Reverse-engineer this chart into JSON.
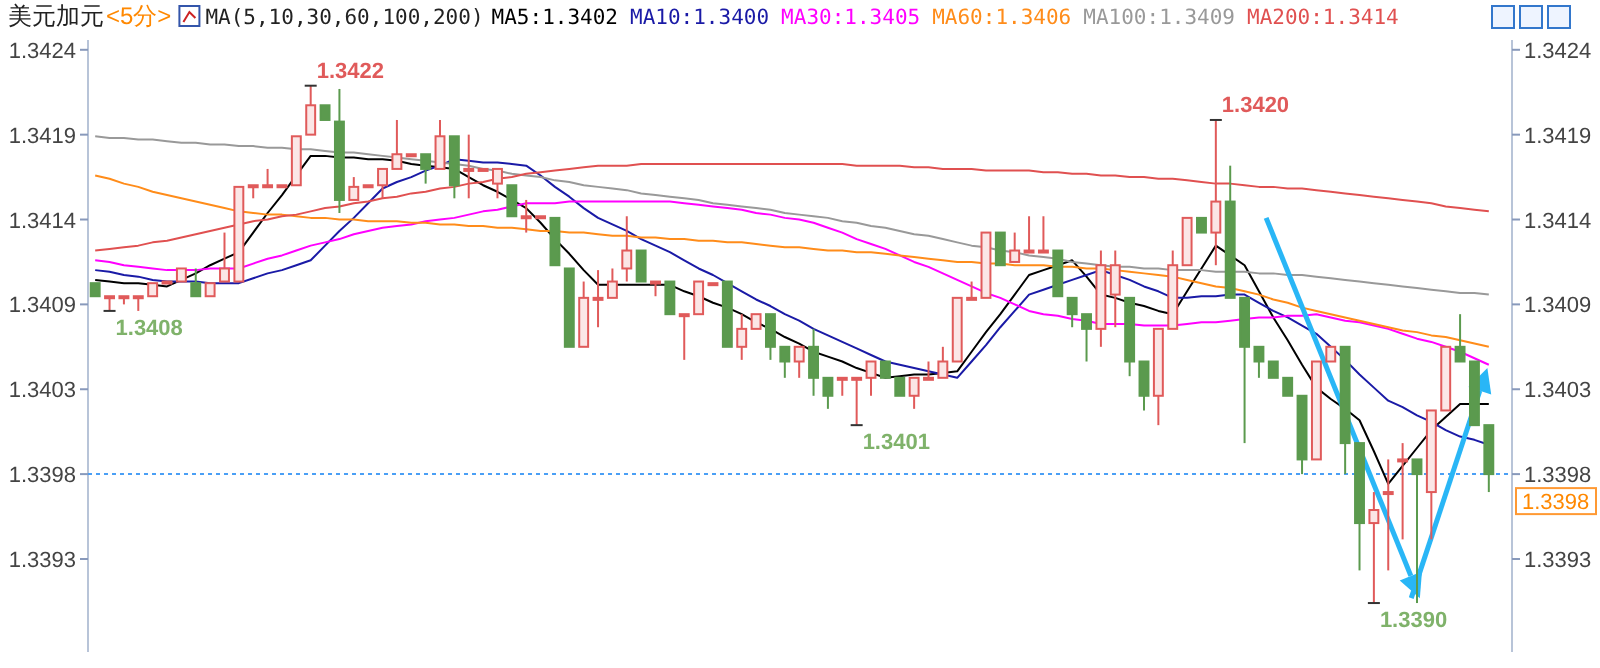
{
  "chart_data": {
    "type": "candlestick",
    "title": "美元加元",
    "subtitle": "<5分>",
    "annotations": [
      "MA(5,10,30,60,100,200)",
      "1.3422",
      "1.3408",
      "1.3401",
      "1.3420",
      "1.3390"
    ],
    "categories": [
      null,
      null,
      null,
      null,
      null,
      null,
      null,
      null,
      null,
      null,
      null,
      null,
      null,
      null,
      null,
      null,
      null,
      null,
      null,
      null,
      null,
      null,
      null,
      null,
      null,
      null,
      null,
      null,
      null,
      null,
      null,
      null,
      null,
      null,
      null,
      null,
      null,
      null,
      null,
      null,
      null,
      null,
      null,
      null,
      null,
      null,
      null,
      null,
      null,
      null,
      null,
      null,
      null,
      null,
      null,
      null,
      null,
      null,
      null,
      null,
      null,
      null,
      null,
      null,
      null,
      null,
      null,
      null,
      null,
      null,
      null,
      null,
      null,
      null,
      null,
      null,
      null,
      null,
      null,
      null,
      null,
      null,
      null,
      null,
      null,
      null,
      null,
      null,
      null,
      null,
      null,
      null,
      null,
      null,
      null,
      null,
      null,
      null
    ],
    "ohlc": [
      [
        1.34099,
        1.34099,
        1.34091,
        1.34091
      ],
      [
        1.34091,
        1.34091,
        1.34082,
        1.34091
      ],
      [
        1.34091,
        1.34091,
        1.34086,
        1.34091
      ],
      [
        1.34091,
        1.34091,
        1.34082,
        1.34091
      ],
      [
        1.34091,
        1.34099,
        1.34091,
        1.34099
      ],
      [
        1.341,
        1.341,
        1.341,
        1.341
      ],
      [
        1.341,
        1.34108,
        1.341,
        1.34108
      ],
      [
        1.34099,
        1.34108,
        1.34091,
        1.34091
      ],
      [
        1.34091,
        1.34099,
        1.34091,
        1.34099
      ],
      [
        1.341,
        1.3413,
        1.341,
        1.34108
      ],
      [
        1.341,
        1.34158,
        1.341,
        1.34158
      ],
      [
        1.34159,
        1.34159,
        1.34151,
        1.34159
      ],
      [
        1.34159,
        1.34169,
        1.34159,
        1.34159
      ],
      [
        1.34159,
        1.34159,
        1.34159,
        1.34159
      ],
      [
        1.34159,
        1.34189,
        1.34159,
        1.34189
      ],
      [
        1.3419,
        1.3422,
        1.3419,
        1.34208
      ],
      [
        1.34208,
        1.34208,
        1.34199,
        1.34199
      ],
      [
        1.34198,
        1.34218,
        1.34142,
        1.3415
      ],
      [
        1.3415,
        1.34164,
        1.3415,
        1.34158
      ],
      [
        1.34159,
        1.34159,
        1.34159,
        1.34159
      ],
      [
        1.34159,
        1.34169,
        1.34151,
        1.34169
      ],
      [
        1.34169,
        1.34199,
        1.34169,
        1.34178
      ],
      [
        1.34178,
        1.34178,
        1.34178,
        1.34178
      ],
      [
        1.34178,
        1.34178,
        1.3416,
        1.34169
      ],
      [
        1.34169,
        1.34199,
        1.34169,
        1.34189
      ],
      [
        1.34189,
        1.34189,
        1.34151,
        1.34159
      ],
      [
        1.34169,
        1.3419,
        1.34151,
        1.34169
      ],
      [
        1.34169,
        1.34169,
        1.34169,
        1.34169
      ],
      [
        1.3416,
        1.34169,
        1.34151,
        1.34169
      ],
      [
        1.34159,
        1.34159,
        1.3414,
        1.3414
      ],
      [
        1.3414,
        1.3415,
        1.3413,
        1.3414
      ],
      [
        1.3414,
        1.3414,
        1.3414,
        1.3414
      ],
      [
        1.34139,
        1.34139,
        1.3411,
        1.3411
      ],
      [
        1.34108,
        1.34108,
        1.3406,
        1.3406
      ],
      [
        1.3406,
        1.341,
        1.3406,
        1.3409
      ],
      [
        1.3409,
        1.34107,
        1.34072,
        1.3409
      ],
      [
        1.3409,
        1.34108,
        1.3409,
        1.341
      ],
      [
        1.34108,
        1.3414,
        1.341,
        1.34119
      ],
      [
        1.34119,
        1.34119,
        1.341,
        1.341
      ],
      [
        1.341,
        1.341,
        1.34091,
        1.341
      ],
      [
        1.341,
        1.341,
        1.3408,
        1.3408
      ],
      [
        1.3408,
        1.3408,
        1.34052,
        1.3408
      ],
      [
        1.3408,
        1.341,
        1.3408,
        1.341
      ],
      [
        1.34099,
        1.34099,
        1.34099,
        1.34099
      ],
      [
        1.341,
        1.341,
        1.3406,
        1.3406
      ],
      [
        1.3406,
        1.3408,
        1.34052,
        1.34071
      ],
      [
        1.34071,
        1.3408,
        1.34071,
        1.3408
      ],
      [
        1.3408,
        1.3408,
        1.34052,
        1.3406
      ],
      [
        1.3406,
        1.3406,
        1.34041,
        1.34051
      ],
      [
        1.34051,
        1.3406,
        1.34041,
        1.3406
      ],
      [
        1.3406,
        1.34071,
        1.3403,
        1.34041
      ],
      [
        1.34041,
        1.34041,
        1.34022,
        1.3403
      ],
      [
        1.34041,
        1.34041,
        1.3403,
        1.34041
      ],
      [
        1.34041,
        1.34041,
        1.34012,
        1.34041
      ],
      [
        1.34041,
        1.34051,
        1.3403,
        1.34051
      ],
      [
        1.34051,
        1.34051,
        1.34041,
        1.34041
      ],
      [
        1.34041,
        1.34041,
        1.3403,
        1.3403
      ],
      [
        1.3403,
        1.34041,
        1.34022,
        1.34041
      ],
      [
        1.34041,
        1.34051,
        1.34041,
        1.34041
      ],
      [
        1.34041,
        1.3406,
        1.34041,
        1.34051
      ],
      [
        1.34051,
        1.3409,
        1.34051,
        1.3409
      ],
      [
        1.3409,
        1.341,
        1.3409,
        1.3409
      ],
      [
        1.3409,
        1.3413,
        1.3409,
        1.3413
      ],
      [
        1.3413,
        1.3413,
        1.3411,
        1.3411
      ],
      [
        1.34112,
        1.3413,
        1.34112,
        1.34119
      ],
      [
        1.34119,
        1.3414,
        1.34119,
        1.34119
      ],
      [
        1.34119,
        1.3414,
        1.34119,
        1.34119
      ],
      [
        1.34119,
        1.34119,
        1.34091,
        1.34091
      ],
      [
        1.3409,
        1.3409,
        1.34072,
        1.3408
      ],
      [
        1.3408,
        1.3408,
        1.34051,
        1.34071
      ],
      [
        1.34071,
        1.34119,
        1.3406,
        1.3411
      ],
      [
        1.34092,
        1.34119,
        1.34072,
        1.3411
      ],
      [
        1.3409,
        1.3409,
        1.34042,
        1.34051
      ],
      [
        1.34051,
        1.34051,
        1.34021,
        1.3403
      ],
      [
        1.3403,
        1.34071,
        1.34012,
        1.34071
      ],
      [
        1.34071,
        1.34119,
        1.34071,
        1.3411
      ],
      [
        1.3411,
        1.34139,
        1.3411,
        1.34139
      ],
      [
        1.34139,
        1.34139,
        1.3413,
        1.3413
      ],
      [
        1.3413,
        1.34199,
        1.3411,
        1.34149
      ],
      [
        1.34149,
        1.34171,
        1.3409,
        1.3409
      ],
      [
        1.3409,
        1.3409,
        1.34001,
        1.3406
      ],
      [
        1.3406,
        1.3406,
        1.34041,
        1.34051
      ],
      [
        1.34051,
        1.34051,
        1.34041,
        1.34041
      ],
      [
        1.34041,
        1.34041,
        1.3403,
        1.3403
      ],
      [
        1.3403,
        1.3403,
        1.33982,
        1.33991
      ],
      [
        1.33991,
        1.34051,
        1.33991,
        1.34051
      ],
      [
        1.34051,
        1.3406,
        1.34051,
        1.3406
      ],
      [
        1.3406,
        1.3406,
        1.33982,
        1.34001
      ],
      [
        1.34001,
        1.34001,
        1.33923,
        1.33952
      ],
      [
        1.33952,
        1.33971,
        1.33903,
        1.3396
      ],
      [
        1.33971,
        1.33991,
        1.33923,
        1.33971
      ],
      [
        1.33991,
        1.34001,
        1.33942,
        1.33991
      ],
      [
        1.33991,
        1.33991,
        1.33903,
        1.33982
      ],
      [
        1.33971,
        1.34021,
        1.33942,
        1.34021
      ],
      [
        1.34021,
        1.3406,
        1.34021,
        1.3406
      ],
      [
        1.3406,
        1.3408,
        1.34051,
        1.34051
      ],
      [
        1.34051,
        1.34051,
        1.34012,
        1.34012
      ],
      [
        1.34012,
        1.34012,
        1.33971,
        1.33982
      ]
    ],
    "series": [
      {
        "name": "MA5:1.3402",
        "type": "line",
        "color": "#000000",
        "values": [
          1.34101,
          1.341,
          1.34099,
          1.34099,
          1.34098,
          1.34097,
          1.34101,
          1.34105,
          1.3411,
          1.34114,
          1.34118,
          1.3413,
          1.34142,
          1.34153,
          1.34165,
          1.34177,
          1.34177,
          1.34176,
          1.34176,
          1.34175,
          1.34175,
          1.34174,
          1.34172,
          1.34171,
          1.3417,
          1.34169,
          1.34164,
          1.34159,
          1.34155,
          1.3415,
          1.34145,
          1.34136,
          1.34126,
          1.34117,
          1.34107,
          1.34098,
          1.34098,
          1.34098,
          1.34098,
          1.34098,
          1.34098,
          1.34094,
          1.34091,
          1.34087,
          1.34084,
          1.3408,
          1.34075,
          1.34071,
          1.34066,
          1.34062,
          1.34057,
          1.34054,
          1.34051,
          1.34047,
          1.34044,
          1.34041,
          1.34042,
          1.34043,
          1.34043,
          1.34044,
          1.34045,
          1.34057,
          1.34069,
          1.3408,
          1.34092,
          1.34104,
          1.34107,
          1.3411,
          1.34113,
          1.34103,
          1.34092,
          1.3409,
          1.34087,
          1.34085,
          1.34082,
          1.3408,
          1.34094,
          1.34108,
          1.34122,
          1.34116,
          1.3411,
          1.34094,
          1.34078,
          1.34064,
          1.34049,
          1.34035,
          1.34028,
          1.34022,
          1.34015,
          1.33996,
          1.33976,
          1.33987,
          1.33998,
          1.34009,
          1.34017,
          1.34025,
          1.34025,
          1.34025
        ]
      },
      {
        "name": "MA10:1.3400",
        "type": "line",
        "color": "#1a1aa6",
        "values": [
          1.34107,
          1.34106,
          1.34104,
          1.34103,
          1.34101,
          1.341,
          1.341,
          1.341,
          1.34099,
          1.34099,
          1.34099,
          1.34102,
          1.34105,
          1.34107,
          1.3411,
          1.34113,
          1.34122,
          1.34131,
          1.34139,
          1.34148,
          1.34157,
          1.34161,
          1.34164,
          1.34168,
          1.34171,
          1.34175,
          1.34174,
          1.34173,
          1.34173,
          1.34172,
          1.34171,
          1.34165,
          1.34158,
          1.34152,
          1.34145,
          1.34139,
          1.34135,
          1.34131,
          1.34126,
          1.34122,
          1.34118,
          1.34113,
          1.34108,
          1.34104,
          1.34099,
          1.34094,
          1.34089,
          1.34085,
          1.3408,
          1.34076,
          1.34071,
          1.34067,
          1.34063,
          1.34059,
          1.34055,
          1.34051,
          1.34049,
          1.34047,
          1.34045,
          1.34043,
          1.34041,
          1.34051,
          1.34061,
          1.34072,
          1.34082,
          1.34092,
          1.34095,
          1.34098,
          1.34101,
          1.34104,
          1.34107,
          1.34104,
          1.34101,
          1.34097,
          1.34094,
          1.3409,
          1.3409,
          1.34091,
          1.34091,
          1.34092,
          1.34092,
          1.34087,
          1.34082,
          1.34078,
          1.34073,
          1.34068,
          1.3406,
          1.34052,
          1.34043,
          1.34035,
          1.34027,
          1.34023,
          1.34018,
          1.34014,
          1.34009,
          1.34005,
          1.34003,
          1.34
        ]
      },
      {
        "name": "MA30:1.3405",
        "type": "line",
        "color": "#ff00ff",
        "values": [
          1.34113,
          1.34112,
          1.3411,
          1.34109,
          1.34108,
          1.34107,
          1.34107,
          1.34107,
          1.34108,
          1.34108,
          1.34108,
          1.34111,
          1.34114,
          1.34116,
          1.34119,
          1.34122,
          1.34124,
          1.34126,
          1.34129,
          1.34131,
          1.34133,
          1.34134,
          1.34135,
          1.34137,
          1.34138,
          1.34139,
          1.34141,
          1.34143,
          1.34144,
          1.34146,
          1.34148,
          1.34148,
          1.34148,
          1.34149,
          1.34149,
          1.34149,
          1.34149,
          1.34149,
          1.34149,
          1.34149,
          1.34149,
          1.34148,
          1.34147,
          1.34146,
          1.34145,
          1.34144,
          1.34142,
          1.34141,
          1.34139,
          1.34138,
          1.34136,
          1.34133,
          1.3413,
          1.34126,
          1.34123,
          1.3412,
          1.34116,
          1.34112,
          1.34109,
          1.34105,
          1.34101,
          1.34097,
          1.34093,
          1.3409,
          1.34086,
          1.34082,
          1.3408,
          1.34079,
          1.34077,
          1.34076,
          1.34074,
          1.34074,
          1.34074,
          1.34073,
          1.34073,
          1.34073,
          1.34074,
          1.34075,
          1.34075,
          1.34076,
          1.34077,
          1.34078,
          1.34078,
          1.34079,
          1.34079,
          1.3408,
          1.34078,
          1.34076,
          1.34075,
          1.34073,
          1.34071,
          1.34068,
          1.34065,
          1.34063,
          1.3406,
          1.34057,
          1.34053,
          1.34049
        ]
      },
      {
        "name": "MA60:1.3406",
        "type": "line",
        "color": "#ff8c1a",
        "values": [
          1.34165,
          1.34163,
          1.3416,
          1.34158,
          1.34155,
          1.34153,
          1.34151,
          1.34149,
          1.34147,
          1.34145,
          1.34143,
          1.34142,
          1.34141,
          1.34141,
          1.3414,
          1.34139,
          1.34139,
          1.34138,
          1.34138,
          1.34137,
          1.34137,
          1.34137,
          1.34136,
          1.34136,
          1.34135,
          1.34135,
          1.34134,
          1.34134,
          1.34133,
          1.34133,
          1.34132,
          1.34131,
          1.34131,
          1.3413,
          1.3413,
          1.34129,
          1.34128,
          1.34128,
          1.34127,
          1.34127,
          1.34126,
          1.34126,
          1.34125,
          1.34125,
          1.34124,
          1.34124,
          1.34123,
          1.34122,
          1.34121,
          1.34121,
          1.3412,
          1.34119,
          1.34119,
          1.34118,
          1.34118,
          1.34117,
          1.34116,
          1.34115,
          1.34114,
          1.34113,
          1.34112,
          1.34112,
          1.34111,
          1.34111,
          1.3411,
          1.3411,
          1.3411,
          1.34109,
          1.34109,
          1.34108,
          1.34108,
          1.34107,
          1.34106,
          1.34105,
          1.34104,
          1.34103,
          1.34101,
          1.34099,
          1.34097,
          1.34096,
          1.34094,
          1.34092,
          1.34089,
          1.34087,
          1.34084,
          1.34082,
          1.3408,
          1.34078,
          1.34076,
          1.34074,
          1.34072,
          1.3407,
          1.34069,
          1.34067,
          1.34066,
          1.34064,
          1.34062,
          1.3406
        ]
      },
      {
        "name": "MA100:1.3409",
        "type": "line",
        "color": "#999999",
        "values": [
          1.34189,
          1.34188,
          1.34188,
          1.34187,
          1.34187,
          1.34186,
          1.34185,
          1.34185,
          1.34184,
          1.34184,
          1.34183,
          1.34183,
          1.34182,
          1.34182,
          1.34181,
          1.34181,
          1.3418,
          1.34179,
          1.34179,
          1.34178,
          1.34177,
          1.34176,
          1.34175,
          1.34174,
          1.34173,
          1.34172,
          1.34171,
          1.34169,
          1.34168,
          1.34166,
          1.34165,
          1.34164,
          1.34162,
          1.34161,
          1.34159,
          1.34158,
          1.34157,
          1.34156,
          1.34154,
          1.34153,
          1.34152,
          1.34151,
          1.3415,
          1.34148,
          1.34147,
          1.34146,
          1.34145,
          1.34144,
          1.34142,
          1.34141,
          1.3414,
          1.34139,
          1.34137,
          1.34136,
          1.34134,
          1.34133,
          1.34131,
          1.34129,
          1.34128,
          1.34126,
          1.34124,
          1.34122,
          1.34121,
          1.34119,
          1.34118,
          1.34116,
          1.34115,
          1.34114,
          1.34112,
          1.34111,
          1.3411,
          1.34109,
          1.34109,
          1.34108,
          1.34108,
          1.34107,
          1.34107,
          1.34107,
          1.34106,
          1.34106,
          1.34106,
          1.34105,
          1.34105,
          1.34104,
          1.34104,
          1.34103,
          1.34102,
          1.34101,
          1.341,
          1.34099,
          1.34098,
          1.34097,
          1.34096,
          1.34095,
          1.34094,
          1.34093,
          1.34093,
          1.34092
        ]
      },
      {
        "name": "MA200:1.3414",
        "type": "line",
        "color": "#e05050",
        "values": [
          1.34119,
          1.3412,
          1.34121,
          1.34122,
          1.34124,
          1.34125,
          1.34127,
          1.34129,
          1.34131,
          1.34133,
          1.34135,
          1.34137,
          1.34138,
          1.3414,
          1.34141,
          1.34143,
          1.34145,
          1.34146,
          1.34148,
          1.34149,
          1.34151,
          1.34152,
          1.34154,
          1.34155,
          1.34157,
          1.34158,
          1.3416,
          1.34161,
          1.34163,
          1.34164,
          1.34166,
          1.34167,
          1.34168,
          1.34169,
          1.3417,
          1.34171,
          1.34171,
          1.34171,
          1.34172,
          1.34172,
          1.34172,
          1.34172,
          1.34172,
          1.34172,
          1.34172,
          1.34172,
          1.34172,
          1.34172,
          1.34172,
          1.34172,
          1.34172,
          1.34172,
          1.34172,
          1.34171,
          1.34171,
          1.34171,
          1.34171,
          1.3417,
          1.3417,
          1.34169,
          1.34169,
          1.34169,
          1.34168,
          1.34168,
          1.34168,
          1.34168,
          1.34167,
          1.34167,
          1.34166,
          1.34166,
          1.34165,
          1.34165,
          1.34164,
          1.34164,
          1.34163,
          1.34163,
          1.34162,
          1.34161,
          1.3416,
          1.3416,
          1.34159,
          1.34158,
          1.34158,
          1.34157,
          1.34157,
          1.34156,
          1.34155,
          1.34154,
          1.34153,
          1.34152,
          1.34151,
          1.3415,
          1.34149,
          1.34148,
          1.34146,
          1.34145,
          1.34144,
          1.34143
        ]
      }
    ],
    "ylim": [
      1.33873,
      1.34248
    ],
    "yticks": [
      {
        "value": 1.3393,
        "label": "1.3393"
      },
      {
        "value": 1.33982,
        "label": "1.3398"
      },
      {
        "value": 1.34034,
        "label": "1.3403"
      },
      {
        "value": 1.34086,
        "label": "1.3409"
      },
      {
        "value": 1.34138,
        "label": "1.3414"
      },
      {
        "value": 1.3419,
        "label": "1.3419"
      },
      {
        "value": 1.34242,
        "label": "1.3424"
      }
    ],
    "y2lim": [
      1.33873,
      1.34248
    ],
    "y2ticks": [
      {
        "value": 1.3393,
        "label": "1.3393"
      },
      {
        "value": 1.33982,
        "label": "1.3398"
      },
      {
        "value": 1.34034,
        "label": "1.3403"
      },
      {
        "value": 1.34086,
        "label": "1.3409"
      },
      {
        "value": 1.34138,
        "label": "1.3414"
      },
      {
        "value": 1.3419,
        "label": "1.3419"
      },
      {
        "value": 1.34242,
        "label": "1.3424"
      }
    ],
    "ref_lines": [
      {
        "axis": "y2",
        "value": 1.33982,
        "label": "1.3398",
        "color": "#4a9ff5",
        "line_style": "dotted"
      }
    ],
    "tick_labels": "y"
  }
}
